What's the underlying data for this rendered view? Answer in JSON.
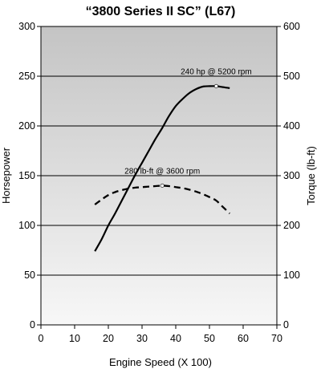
{
  "chart_data": {
    "type": "line",
    "title": "“3800 Series II SC” (L67)",
    "xlabel": "Engine Speed (X 100)",
    "ylabel": "Horsepower",
    "y2label": "Torque (lb-ft)",
    "xlim": [
      0,
      70
    ],
    "ylim": [
      0,
      300
    ],
    "y2lim": [
      0,
      600
    ],
    "xticks": [
      "0",
      "10",
      "20",
      "30",
      "40",
      "50",
      "60",
      "70"
    ],
    "yticks": [
      "0",
      "50",
      "100",
      "150",
      "200",
      "250",
      "300"
    ],
    "y2ticks": [
      "0",
      "100",
      "200",
      "300",
      "400",
      "500",
      "600"
    ],
    "grid": "horizontal",
    "background": "gradient-gray",
    "series": [
      {
        "axis": "left",
        "style": "solid",
        "color": "#000000",
        "x": [
          16,
          18,
          20,
          22,
          24,
          26,
          28,
          30,
          32,
          34,
          36,
          38,
          40,
          42,
          44,
          46,
          48,
          50,
          52,
          54,
          56
        ],
        "y": [
          74,
          86,
          100,
          112,
          125,
          138,
          151,
          163,
          175,
          187,
          198,
          210,
          220,
          227,
          233,
          237,
          239.5,
          240,
          240,
          239,
          238
        ]
      },
      {
        "axis": "right",
        "style": "dashed",
        "color": "#000000",
        "x": [
          16,
          18,
          20,
          22,
          24,
          26,
          28,
          30,
          32,
          34,
          36,
          38,
          40,
          42,
          44,
          46,
          48,
          50,
          52,
          54,
          56
        ],
        "y": [
          242,
          252,
          261,
          267,
          271,
          274,
          276,
          277,
          278,
          279,
          280,
          279,
          277,
          275,
          272,
          268,
          263,
          257,
          250,
          237,
          224
        ]
      }
    ],
    "annotations": [
      {
        "text": "240 hp @ 5200 rpm",
        "x": 52,
        "y": 240,
        "axis": "left"
      },
      {
        "text": "280 lb-ft @ 3600 rpm",
        "x": 36,
        "y": 280,
        "axis": "right"
      }
    ]
  }
}
